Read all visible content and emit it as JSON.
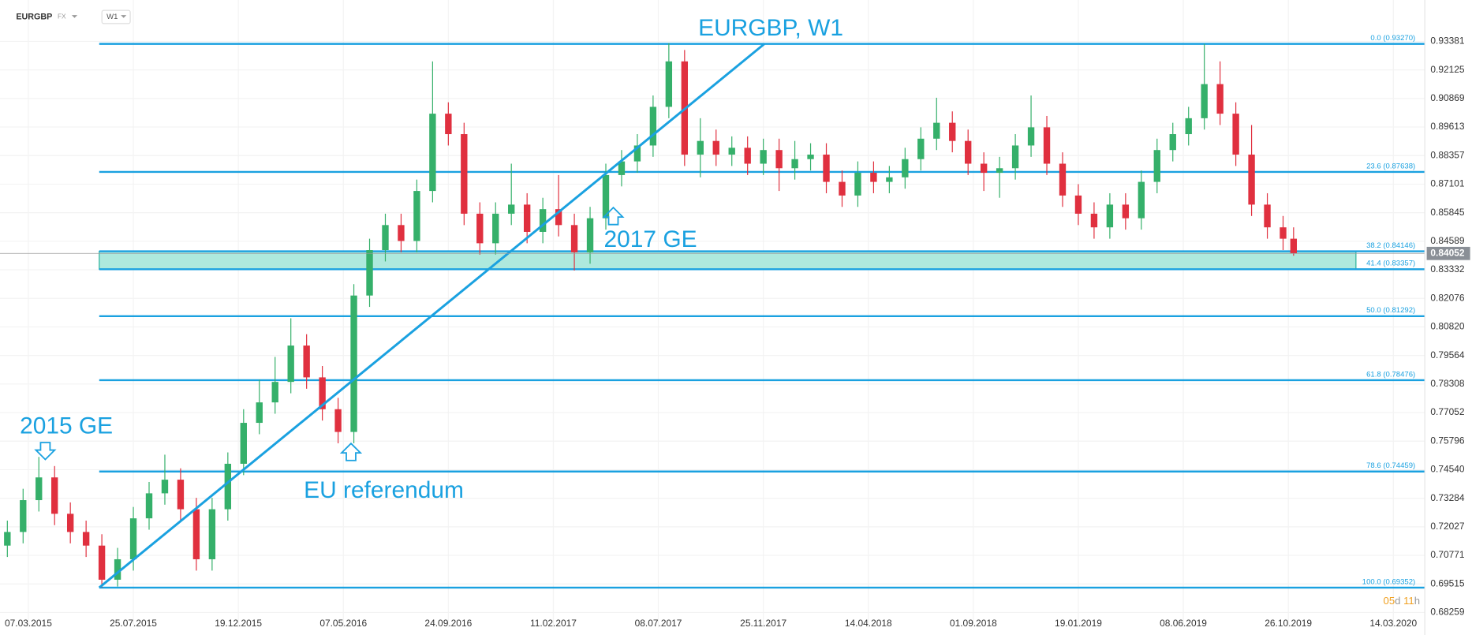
{
  "header": {
    "symbol": "EURGBP",
    "market": "FX",
    "interval": "W1"
  },
  "chart_data": {
    "type": "candlestick",
    "title": "EURGBP, W1",
    "annotations": [
      "2015 GE",
      "EU referendum",
      "2017 GE"
    ],
    "colors": {
      "up": "#35b06a",
      "down": "#e0303f",
      "level": "#1aa1e0",
      "zone": "#aee9dd"
    },
    "xlim": [
      -5.4,
      266
    ],
    "ylim": [
      0.676,
      0.952
    ],
    "xticks": [
      {
        "value": 0,
        "label": "07.03.2015"
      },
      {
        "value": 20,
        "label": "25.07.2015"
      },
      {
        "value": 40,
        "label": "19.12.2015"
      },
      {
        "value": 60,
        "label": "07.05.2016"
      },
      {
        "value": 80,
        "label": "24.09.2016"
      },
      {
        "value": 100,
        "label": "11.02.2017"
      },
      {
        "value": 120,
        "label": "08.07.2017"
      },
      {
        "value": 140,
        "label": "25.11.2017"
      },
      {
        "value": 160,
        "label": "14.04.2018"
      },
      {
        "value": 180,
        "label": "01.09.2018"
      },
      {
        "value": 200,
        "label": "19.01.2019"
      },
      {
        "value": 220,
        "label": "08.06.2019"
      },
      {
        "value": 240,
        "label": "26.10.2019"
      },
      {
        "value": 260,
        "label": "14.03.2020"
      }
    ],
    "yticks": [
      0.93381,
      0.92125,
      0.90869,
      0.89613,
      0.88357,
      0.87101,
      0.85845,
      0.84589,
      0.83332,
      0.82076,
      {
        "value": 0.8082,
        "label": "0.80820"
      },
      0.79564,
      0.78308,
      0.77052,
      0.75796,
      {
        "value": 0.7454,
        "label": "0.74540"
      },
      0.73284,
      0.72027,
      0.70771,
      0.69515,
      0.68259
    ],
    "fib_levels": [
      {
        "value": 0.9327,
        "label": "0.0 (0.93270)"
      },
      {
        "value": 0.87638,
        "label": "23.6 (0.87638)"
      },
      {
        "value": 0.84146,
        "label": "38.2 (0.84146)"
      },
      {
        "value": 0.83357,
        "label": "41.4 (0.83357)"
      },
      {
        "value": 0.81292,
        "label": "50.0 (0.81292)"
      },
      {
        "value": 0.78476,
        "label": "61.8 (0.78476)"
      },
      {
        "value": 0.74459,
        "label": "78.6 (0.74459)"
      },
      {
        "value": 0.69352,
        "label": "100.0 (0.69352)"
      }
    ],
    "trendline": {
      "x": [
        13.5,
        140.2
      ],
      "y": [
        0.69352,
        0.9327
      ]
    },
    "current_price": 0.84052,
    "countdown": [
      "05",
      "d",
      "11",
      "h"
    ],
    "candles": {
      "x": [
        -4,
        -1,
        2,
        5,
        8,
        11,
        14,
        17,
        20,
        23,
        26,
        29,
        32,
        35,
        38,
        41,
        44,
        47,
        50,
        53,
        56,
        59,
        62,
        65,
        68,
        71,
        74,
        77,
        80,
        83,
        86,
        89,
        92,
        95,
        98,
        101,
        104,
        107,
        110,
        113,
        116,
        119,
        122,
        125,
        128,
        131,
        134,
        137,
        140,
        143,
        146,
        149,
        152,
        155,
        158,
        161,
        164,
        167,
        170,
        173,
        176,
        179,
        182,
        185,
        188,
        191,
        194,
        197,
        200,
        203,
        206,
        209,
        212,
        215,
        218,
        221,
        224,
        227,
        230,
        233,
        236,
        239,
        241
      ],
      "open": [
        0.712,
        0.718,
        0.732,
        0.742,
        0.726,
        0.718,
        0.712,
        0.697,
        0.706,
        0.724,
        0.735,
        0.741,
        0.728,
        0.706,
        0.728,
        0.748,
        0.766,
        0.775,
        0.784,
        0.8,
        0.786,
        0.772,
        0.762,
        0.822,
        0.842,
        0.853,
        0.846,
        0.868,
        0.902,
        0.893,
        0.858,
        0.845,
        0.858,
        0.862,
        0.85,
        0.86,
        0.853,
        0.841,
        0.856,
        0.875,
        0.881,
        0.888,
        0.905,
        0.925,
        0.884,
        0.89,
        0.884,
        0.887,
        0.88,
        0.886,
        0.878,
        0.882,
        0.884,
        0.872,
        0.866,
        0.876,
        0.872,
        0.874,
        0.882,
        0.891,
        0.898,
        0.89,
        0.88,
        0.876,
        0.878,
        0.888,
        0.896,
        0.88,
        0.866,
        0.858,
        0.852,
        0.862,
        0.856,
        0.872,
        0.886,
        0.893,
        0.9,
        0.915,
        0.902,
        0.884,
        0.862,
        0.852,
        0.847
      ],
      "high": [
        0.723,
        0.737,
        0.751,
        0.747,
        0.731,
        0.723,
        0.717,
        0.711,
        0.729,
        0.74,
        0.752,
        0.746,
        0.733,
        0.733,
        0.753,
        0.772,
        0.785,
        0.795,
        0.812,
        0.805,
        0.791,
        0.777,
        0.827,
        0.847,
        0.858,
        0.858,
        0.873,
        0.925,
        0.907,
        0.898,
        0.863,
        0.863,
        0.88,
        0.867,
        0.865,
        0.875,
        0.858,
        0.861,
        0.88,
        0.886,
        0.893,
        0.91,
        0.933,
        0.93,
        0.9,
        0.895,
        0.892,
        0.892,
        0.891,
        0.891,
        0.89,
        0.889,
        0.889,
        0.877,
        0.881,
        0.881,
        0.879,
        0.887,
        0.896,
        0.909,
        0.903,
        0.895,
        0.885,
        0.883,
        0.893,
        0.91,
        0.901,
        0.885,
        0.871,
        0.863,
        0.867,
        0.867,
        0.877,
        0.891,
        0.898,
        0.905,
        0.9327,
        0.925,
        0.907,
        0.897,
        0.867,
        0.857,
        0.852
      ],
      "low": [
        0.707,
        0.713,
        0.727,
        0.721,
        0.713,
        0.707,
        0.6935,
        0.694,
        0.701,
        0.719,
        0.73,
        0.723,
        0.701,
        0.701,
        0.723,
        0.743,
        0.761,
        0.77,
        0.779,
        0.781,
        0.767,
        0.757,
        0.757,
        0.817,
        0.837,
        0.841,
        0.841,
        0.863,
        0.888,
        0.853,
        0.84,
        0.84,
        0.853,
        0.845,
        0.845,
        0.848,
        0.833,
        0.836,
        0.851,
        0.87,
        0.876,
        0.883,
        0.9,
        0.879,
        0.874,
        0.879,
        0.879,
        0.875,
        0.875,
        0.868,
        0.873,
        0.877,
        0.867,
        0.861,
        0.861,
        0.867,
        0.867,
        0.869,
        0.877,
        0.886,
        0.885,
        0.875,
        0.868,
        0.865,
        0.873,
        0.883,
        0.875,
        0.861,
        0.853,
        0.847,
        0.847,
        0.851,
        0.851,
        0.867,
        0.881,
        0.888,
        0.895,
        0.897,
        0.879,
        0.857,
        0.847,
        0.842,
        0.8395
      ],
      "close": [
        0.718,
        0.732,
        0.742,
        0.726,
        0.718,
        0.712,
        0.697,
        0.706,
        0.724,
        0.735,
        0.741,
        0.728,
        0.706,
        0.728,
        0.748,
        0.766,
        0.775,
        0.784,
        0.8,
        0.786,
        0.772,
        0.762,
        0.822,
        0.842,
        0.853,
        0.846,
        0.868,
        0.902,
        0.893,
        0.858,
        0.845,
        0.858,
        0.862,
        0.85,
        0.86,
        0.853,
        0.841,
        0.856,
        0.875,
        0.881,
        0.888,
        0.905,
        0.925,
        0.884,
        0.89,
        0.884,
        0.887,
        0.88,
        0.886,
        0.878,
        0.882,
        0.884,
        0.872,
        0.866,
        0.876,
        0.872,
        0.874,
        0.882,
        0.891,
        0.898,
        0.89,
        0.88,
        0.876,
        0.878,
        0.888,
        0.896,
        0.88,
        0.866,
        0.858,
        0.852,
        0.862,
        0.856,
        0.872,
        0.886,
        0.893,
        0.9,
        0.915,
        0.902,
        0.884,
        0.862,
        0.852,
        0.847,
        0.8405
      ]
    }
  }
}
